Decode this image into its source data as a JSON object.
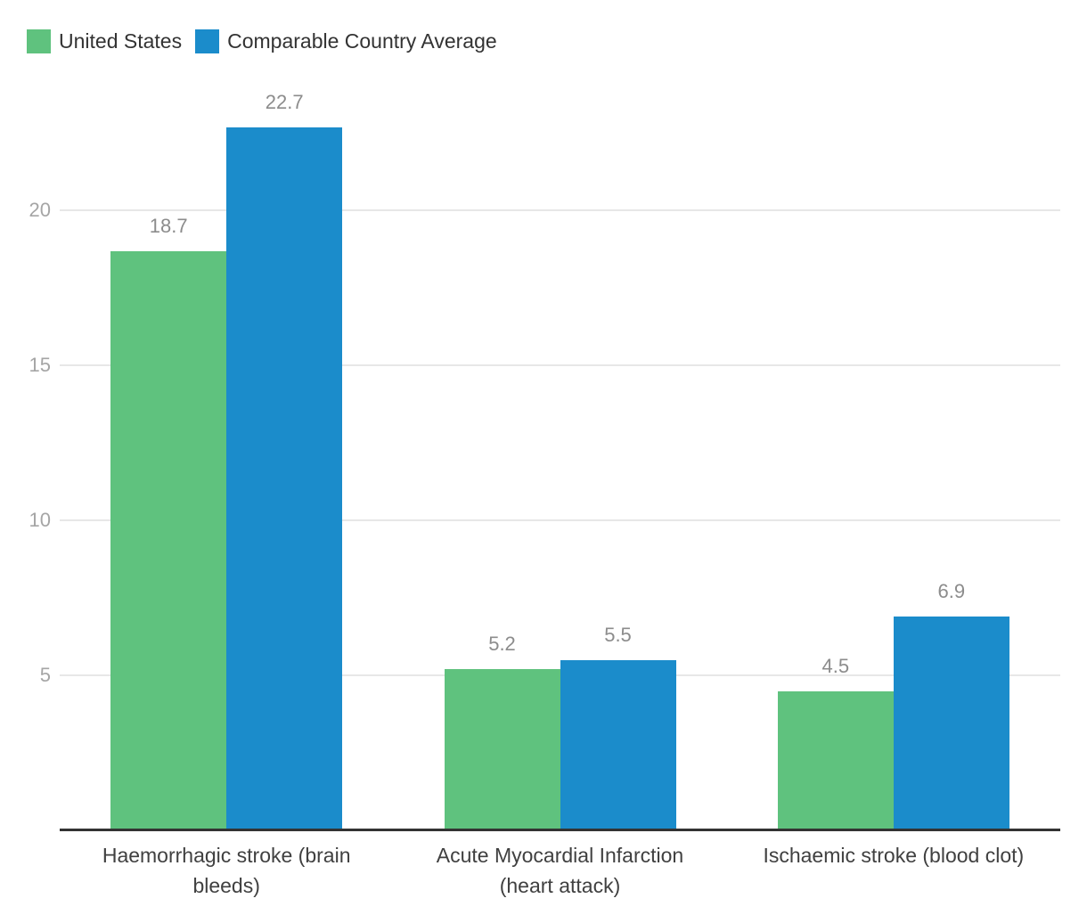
{
  "chart_data": {
    "type": "bar",
    "categories": [
      "Haemorrhagic stroke (brain bleeds)",
      "Acute Myocardial Infarction (heart attack)",
      "Ischaemic stroke (blood clot)"
    ],
    "category_display": [
      "Haemorrhagic stroke (brain\nbleeds)",
      "Acute Myocardial Infarction\n(heart attack)",
      "Ischaemic stroke (blood clot)"
    ],
    "series": [
      {
        "name": "United States",
        "color": "#5fc27e",
        "values": [
          18.7,
          5.2,
          4.5
        ]
      },
      {
        "name": "Comparable Country Average",
        "color": "#1b8ccb",
        "values": [
          22.7,
          5.5,
          6.9
        ]
      }
    ],
    "value_labels": [
      [
        "18.7",
        "5.2",
        "4.5"
      ],
      [
        "22.7",
        "5.5",
        "6.9"
      ]
    ],
    "yticks": [
      "5",
      "10",
      "15",
      "20"
    ],
    "ylim": [
      0,
      26.8
    ],
    "grid": true,
    "legend_position": "top-left",
    "xlabel": "",
    "ylabel": ""
  },
  "colors": {
    "background": "#ffffff",
    "series_green": "#5fc27e",
    "series_blue": "#1b8ccb",
    "axis_line": "#333333",
    "grid_line": "#e7e7e7",
    "tick_label": "#a5a5a5",
    "value_label": "#8c8c8c",
    "category_label": "#404040",
    "legend_text": "#333333"
  }
}
